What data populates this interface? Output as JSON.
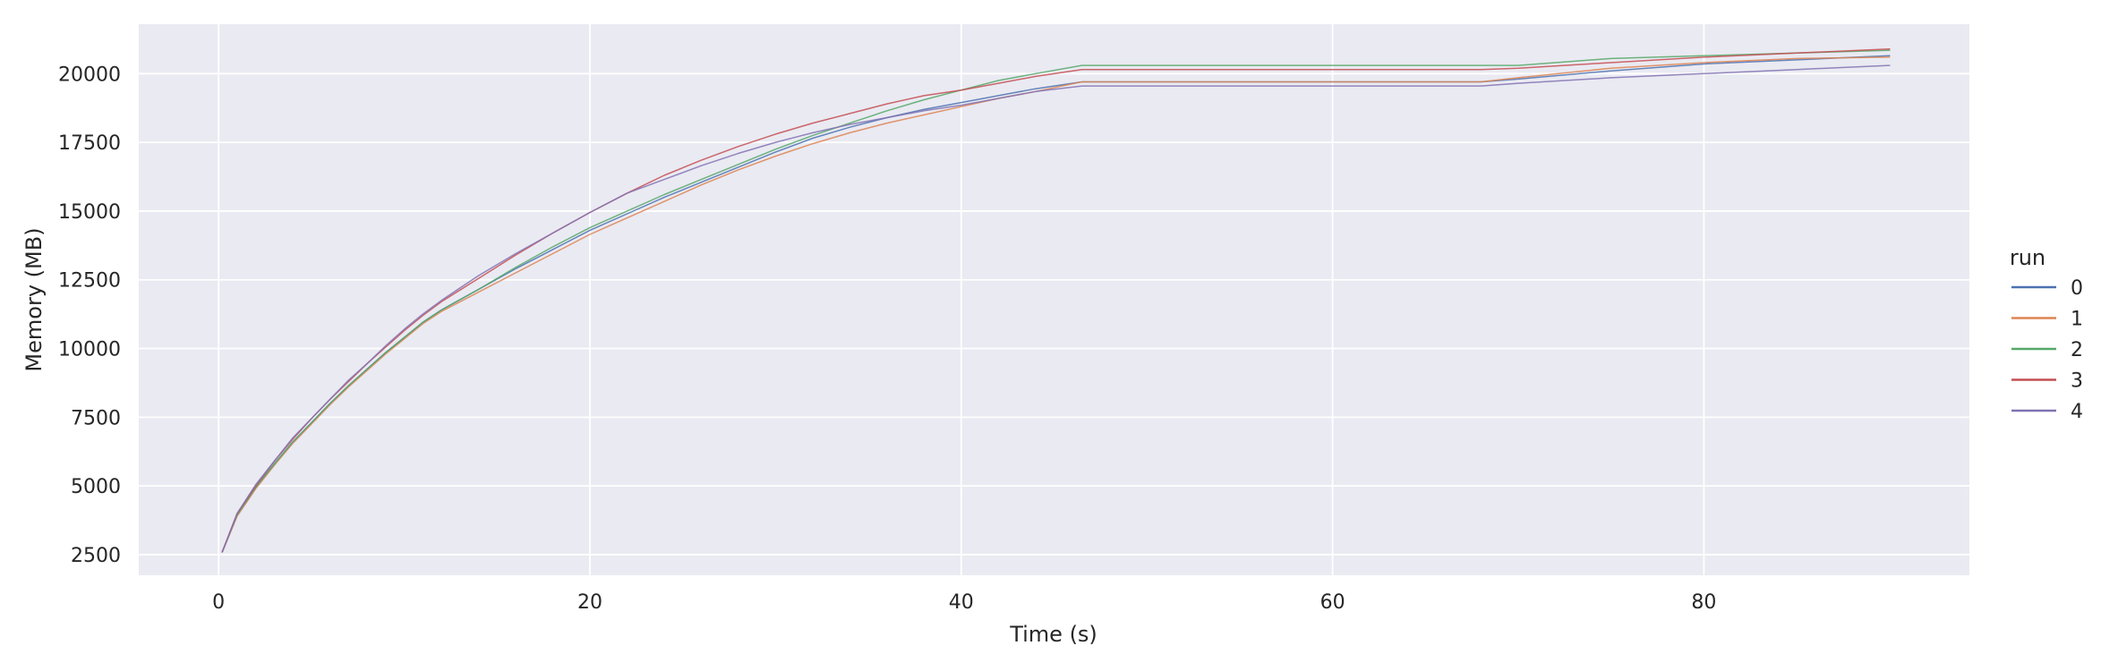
{
  "chart_data": {
    "type": "line",
    "title": "",
    "xlabel": "Time (s)",
    "ylabel": "Memory (MB)",
    "xlim": [
      -4.3,
      94.3
    ],
    "ylim": [
      1750,
      21800
    ],
    "xticks": [
      0,
      20,
      40,
      60,
      80
    ],
    "yticks": [
      2500,
      5000,
      7500,
      10000,
      12500,
      15000,
      17500,
      20000
    ],
    "grid": true,
    "legend": {
      "title": "run",
      "placement": "right"
    },
    "series": [
      {
        "name": "0",
        "color": "#4c72b0",
        "x": [
          0.2,
          1,
          2,
          3,
          4,
          5,
          6,
          7,
          8,
          9,
          10,
          11,
          12,
          14,
          16,
          18,
          20,
          22,
          24,
          26,
          28,
          30,
          32,
          34,
          36,
          38,
          40,
          42,
          44,
          46.5,
          50,
          55,
          60,
          65,
          68,
          70,
          75,
          80,
          85,
          90
        ],
        "y": [
          2600,
          3950,
          4950,
          5800,
          6600,
          7300,
          8000,
          8650,
          9250,
          9850,
          10400,
          10950,
          11400,
          12150,
          12900,
          13600,
          14300,
          14900,
          15500,
          16050,
          16600,
          17150,
          17650,
          18050,
          18400,
          18700,
          18950,
          19200,
          19450,
          19700,
          19700,
          19700,
          19700,
          19700,
          19700,
          19800,
          20100,
          20350,
          20500,
          20650
        ]
      },
      {
        "name": "1",
        "color": "#dd8452",
        "x": [
          0.2,
          1,
          2,
          3,
          4,
          5,
          6,
          7,
          8,
          9,
          10,
          11,
          12,
          14,
          16,
          18,
          20,
          22,
          24,
          26,
          28,
          30,
          32,
          34,
          36,
          38,
          40,
          42,
          44,
          46.5,
          50,
          55,
          60,
          65,
          68,
          70,
          75,
          80,
          85,
          90
        ],
        "y": [
          2600,
          3900,
          4900,
          5750,
          6550,
          7250,
          7950,
          8600,
          9200,
          9800,
          10350,
          10900,
          11350,
          12050,
          12750,
          13450,
          14150,
          14750,
          15350,
          15950,
          16500,
          17000,
          17450,
          17850,
          18200,
          18500,
          18800,
          19100,
          19350,
          19700,
          19700,
          19700,
          19700,
          19700,
          19700,
          19850,
          20200,
          20400,
          20550,
          20600
        ]
      },
      {
        "name": "2",
        "color": "#55a868",
        "x": [
          0.2,
          1,
          2,
          3,
          4,
          5,
          6,
          7,
          8,
          9,
          10,
          11,
          12,
          14,
          16,
          18,
          20,
          22,
          24,
          26,
          28,
          30,
          32,
          34,
          36,
          38,
          40,
          42,
          44,
          46.5,
          50,
          55,
          60,
          65,
          70,
          72,
          75,
          80,
          85,
          90
        ],
        "y": [
          2600,
          3950,
          4950,
          5800,
          6600,
          7300,
          8000,
          8650,
          9250,
          9850,
          10400,
          10950,
          11400,
          12150,
          12950,
          13700,
          14400,
          15000,
          15600,
          16150,
          16700,
          17250,
          17750,
          18200,
          18650,
          19050,
          19400,
          19750,
          20000,
          20300,
          20300,
          20300,
          20300,
          20300,
          20300,
          20400,
          20550,
          20650,
          20750,
          20850
        ]
      },
      {
        "name": "3",
        "color": "#c44e52",
        "x": [
          0.2,
          1,
          2,
          3,
          4,
          5,
          6,
          7,
          8,
          9,
          10,
          11,
          12,
          14,
          16,
          18,
          20,
          22,
          24,
          26,
          28,
          30,
          32,
          34,
          36,
          38,
          40,
          42,
          44,
          46.5,
          50,
          55,
          60,
          65,
          68,
          70,
          75,
          80,
          85,
          90
        ],
        "y": [
          2600,
          4000,
          5000,
          5900,
          6700,
          7450,
          8150,
          8800,
          9450,
          10050,
          10650,
          11200,
          11700,
          12550,
          13400,
          14200,
          14950,
          15650,
          16300,
          16850,
          17350,
          17800,
          18200,
          18550,
          18900,
          19200,
          19400,
          19650,
          19900,
          20150,
          20150,
          20150,
          20150,
          20150,
          20150,
          20200,
          20400,
          20600,
          20750,
          20900
        ]
      },
      {
        "name": "4",
        "color": "#8172b3",
        "x": [
          0.2,
          1,
          2,
          3,
          4,
          5,
          6,
          7,
          8,
          9,
          10,
          11,
          12,
          14,
          16,
          18,
          20,
          22,
          24,
          26,
          28,
          30,
          32,
          34,
          36,
          38,
          40,
          42,
          44,
          46.5,
          50,
          55,
          60,
          65,
          68,
          70,
          75,
          80,
          85,
          90
        ],
        "y": [
          2600,
          4000,
          5050,
          5900,
          6750,
          7450,
          8150,
          8850,
          9450,
          10100,
          10700,
          11250,
          11750,
          12650,
          13450,
          14200,
          14950,
          15650,
          16150,
          16650,
          17100,
          17500,
          17850,
          18150,
          18400,
          18650,
          18850,
          19100,
          19350,
          19550,
          19550,
          19550,
          19550,
          19550,
          19550,
          19650,
          19850,
          20000,
          20150,
          20300
        ]
      }
    ]
  }
}
